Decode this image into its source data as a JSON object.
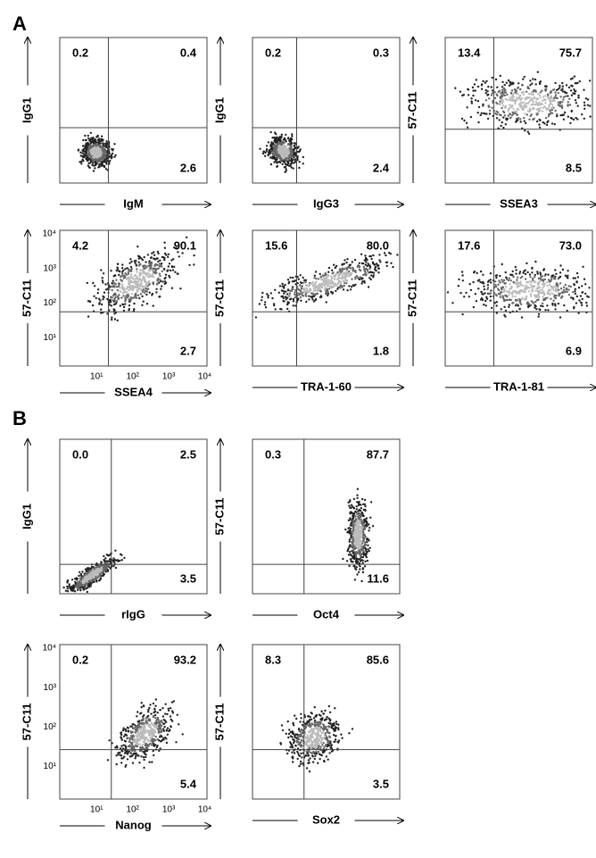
{
  "sections": [
    {
      "label": "A",
      "panels": [
        {
          "y_label": "IgG1",
          "x_label": "IgM",
          "upper_left": "0.2",
          "upper_right": "0.4",
          "lower_right": "2.6"
        },
        {
          "y_label": "IgG1",
          "x_label": "IgG3",
          "upper_left": "0.2",
          "upper_right": "0.3",
          "lower_right": "2.4"
        },
        {
          "y_label": "57-C11",
          "x_label": "SSEA3",
          "upper_left": "13.4",
          "upper_right": "75.7",
          "lower_right": "8.5"
        },
        {
          "y_label": "57-C11",
          "x_label": "SSEA4",
          "upper_left": "4.2",
          "upper_right": "90.1",
          "lower_right": "2.7",
          "x_ticks": [
            "10¹",
            "10²",
            "10³",
            "10⁴"
          ],
          "y_ticks": [
            "10⁴",
            "10³",
            "10²",
            "10¹"
          ]
        },
        {
          "y_label": "57-C11",
          "x_label": "TRA-1-60",
          "upper_left": "15.6",
          "upper_right": "80.0",
          "lower_right": "1.8"
        },
        {
          "y_label": "57-C11",
          "x_label": "TRA-1-81",
          "upper_left": "17.6",
          "upper_right": "73.0",
          "lower_right": "6.9"
        }
      ]
    },
    {
      "label": "B",
      "panels": [
        {
          "y_label": "IgG1",
          "x_label": "rIgG",
          "upper_left": "0.0",
          "upper_right": "2.5",
          "lower_right": "3.5"
        },
        {
          "y_label": "57-C11",
          "x_label": "Oct4",
          "upper_left": "0.3",
          "upper_right": "87.7",
          "lower_right": "11.6"
        },
        {
          "y_label": "57-C11",
          "x_label": "Nanog",
          "upper_left": "0.2",
          "upper_right": "93.2",
          "lower_right": "5.4",
          "x_ticks": [
            "10¹",
            "10²",
            "10³",
            "10⁴"
          ],
          "y_ticks": [
            "10⁴",
            "10³",
            "10²",
            "10¹"
          ]
        },
        {
          "y_label": "57-C11",
          "x_label": "Sox2",
          "upper_left": "8.3",
          "upper_right": "85.6",
          "lower_right": "3.5"
        }
      ]
    }
  ]
}
